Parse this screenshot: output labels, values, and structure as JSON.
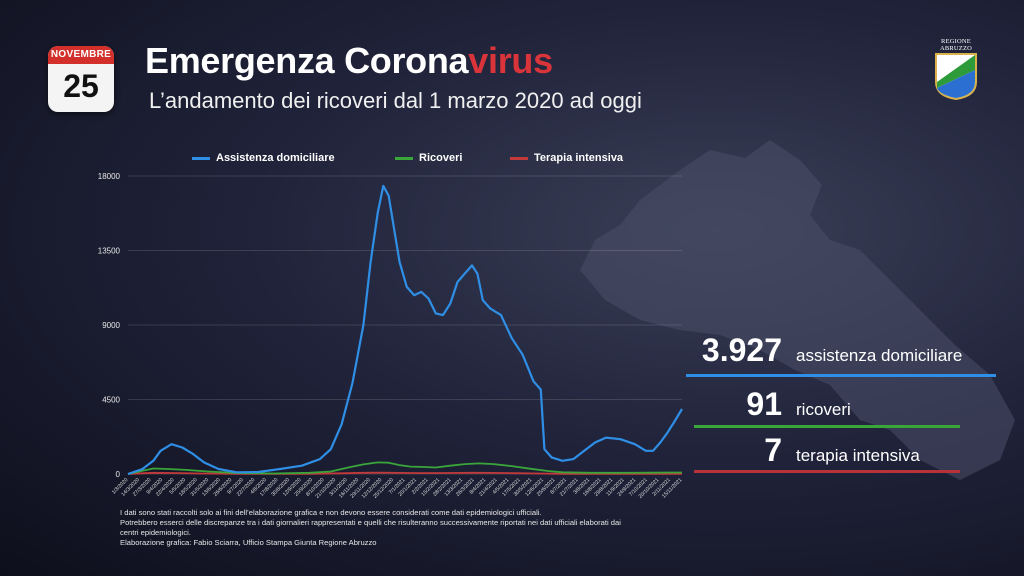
{
  "calendar": {
    "month": "NOVEMBRE",
    "day": "25"
  },
  "header": {
    "title_main": "Emergenza Corona",
    "title_accent": "virus",
    "subtitle": "L’andamento dei ricoveri dal 1 marzo 2020 ad oggi"
  },
  "logo": {
    "line1": "REGIONE",
    "line2": "ABRUZZO"
  },
  "colors": {
    "assistenza": "#2f8fe6",
    "ricoveri": "#3aa63a",
    "terapia": "#c23a3a",
    "accent": "#d8343a"
  },
  "chart_data": {
    "type": "line",
    "title": "",
    "xlabel": "",
    "ylabel": "",
    "ylim": [
      0,
      18000
    ],
    "yticks": [
      0,
      4500,
      9000,
      13500,
      18000
    ],
    "grid": true,
    "legend_position": "top",
    "x_tick_labels": [
      "1/3/2020",
      "14/3/2020",
      "27/3/2020",
      "9/4/2020",
      "22/4/2020",
      "5/5/2020",
      "18/5/2020",
      "31/5/2020",
      "13/6/2020",
      "26/6/2020",
      "9/7/2020",
      "22/7/2020",
      "4/8/2020",
      "17/8/2020",
      "30/8/2020",
      "12/9/2020",
      "25/9/2020",
      "8/10/2020",
      "21/10/2020",
      "3/11/2020",
      "16/11/2020",
      "29/11/2020",
      "12/12/2020",
      "25/12/2020",
      "7/1/2021",
      "20/1/2021",
      "2/2/2021",
      "15/2/2021",
      "28/2/2021",
      "13/3/2021",
      "26/3/2021",
      "8/4/2021",
      "21/4/2021",
      "4/5/2021",
      "17/5/2021",
      "30/5/2021",
      "12/6/2021",
      "25/6/2021",
      "8/7/2021",
      "21/7/2021",
      "3/8/2021",
      "16/8/2021",
      "29/8/2021",
      "11/9/2021",
      "24/9/2021",
      "7/10/2021",
      "20/10/2021",
      "2/11/2021",
      "15/11/2021"
    ],
    "series": [
      {
        "name": "Assistenza domiciliare",
        "color": "#2f8fe6",
        "points": [
          [
            0,
            0
          ],
          [
            8,
            300
          ],
          [
            14,
            800
          ],
          [
            18,
            1400
          ],
          [
            24,
            1800
          ],
          [
            30,
            1600
          ],
          [
            36,
            1200
          ],
          [
            42,
            700
          ],
          [
            50,
            300
          ],
          [
            60,
            100
          ],
          [
            72,
            120
          ],
          [
            84,
            300
          ],
          [
            96,
            500
          ],
          [
            106,
            900
          ],
          [
            112,
            1500
          ],
          [
            118,
            3000
          ],
          [
            124,
            5500
          ],
          [
            130,
            9000
          ],
          [
            134,
            12800
          ],
          [
            138,
            15800
          ],
          [
            141,
            17400
          ],
          [
            144,
            16800
          ],
          [
            147,
            14800
          ],
          [
            150,
            12800
          ],
          [
            154,
            11300
          ],
          [
            158,
            10800
          ],
          [
            162,
            11000
          ],
          [
            166,
            10600
          ],
          [
            170,
            9700
          ],
          [
            174,
            9600
          ],
          [
            178,
            10300
          ],
          [
            182,
            11600
          ],
          [
            186,
            12100
          ],
          [
            190,
            12600
          ],
          [
            193,
            12100
          ],
          [
            196,
            10500
          ],
          [
            200,
            10000
          ],
          [
            206,
            9600
          ],
          [
            212,
            8200
          ],
          [
            218,
            7200
          ],
          [
            224,
            5600
          ],
          [
            228,
            5100
          ],
          [
            230,
            1500
          ],
          [
            234,
            1000
          ],
          [
            240,
            800
          ],
          [
            246,
            900
          ],
          [
            252,
            1400
          ],
          [
            258,
            1900
          ],
          [
            264,
            2200
          ],
          [
            272,
            2100
          ],
          [
            280,
            1800
          ],
          [
            286,
            1400
          ],
          [
            290,
            1400
          ],
          [
            294,
            1900
          ],
          [
            298,
            2500
          ],
          [
            302,
            3200
          ],
          [
            306,
            3927
          ]
        ]
      },
      {
        "name": "Ricoveri",
        "color": "#3aa63a",
        "points": [
          [
            0,
            0
          ],
          [
            8,
            200
          ],
          [
            14,
            330
          ],
          [
            22,
            300
          ],
          [
            32,
            250
          ],
          [
            44,
            150
          ],
          [
            60,
            60
          ],
          [
            80,
            30
          ],
          [
            100,
            70
          ],
          [
            112,
            150
          ],
          [
            122,
            400
          ],
          [
            130,
            580
          ],
          [
            138,
            700
          ],
          [
            144,
            680
          ],
          [
            150,
            540
          ],
          [
            156,
            450
          ],
          [
            162,
            430
          ],
          [
            170,
            390
          ],
          [
            178,
            500
          ],
          [
            186,
            600
          ],
          [
            194,
            640
          ],
          [
            202,
            600
          ],
          [
            212,
            480
          ],
          [
            222,
            320
          ],
          [
            232,
            180
          ],
          [
            240,
            100
          ],
          [
            256,
            70
          ],
          [
            272,
            70
          ],
          [
            288,
            80
          ],
          [
            300,
            90
          ],
          [
            306,
            91
          ]
        ]
      },
      {
        "name": "Terapia intensiva",
        "color": "#c23a3a",
        "points": [
          [
            0,
            0
          ],
          [
            8,
            40
          ],
          [
            14,
            70
          ],
          [
            24,
            60
          ],
          [
            40,
            30
          ],
          [
            60,
            10
          ],
          [
            100,
            10
          ],
          [
            118,
            40
          ],
          [
            130,
            70
          ],
          [
            140,
            80
          ],
          [
            150,
            65
          ],
          [
            162,
            55
          ],
          [
            176,
            60
          ],
          [
            190,
            75
          ],
          [
            202,
            65
          ],
          [
            214,
            50
          ],
          [
            226,
            30
          ],
          [
            240,
            10
          ],
          [
            270,
            5
          ],
          [
            306,
            7
          ]
        ]
      }
    ]
  },
  "stats": [
    {
      "value": "3.927",
      "label": "assistenza domiciliare"
    },
    {
      "value": "91",
      "label": "ricoveri"
    },
    {
      "value": "7",
      "label": "terapia intensiva"
    }
  ],
  "footnote": {
    "line1": "I dati sono stati raccolti solo ai fini dell’elaborazione grafica e non devono essere considerati come dati epidemiologici ufficiali.",
    "line2": "Potrebbero esserci delle discrepanze tra i dati giornalieri rappresentati e quelli che risulteranno successivamente riportati nei dati ufficiali elaborati dai centri epidemiologici.",
    "line3": "Elaborazione grafica: Fabio Sciarra, Ufficio Stampa Giunta Regione Abruzzo"
  }
}
